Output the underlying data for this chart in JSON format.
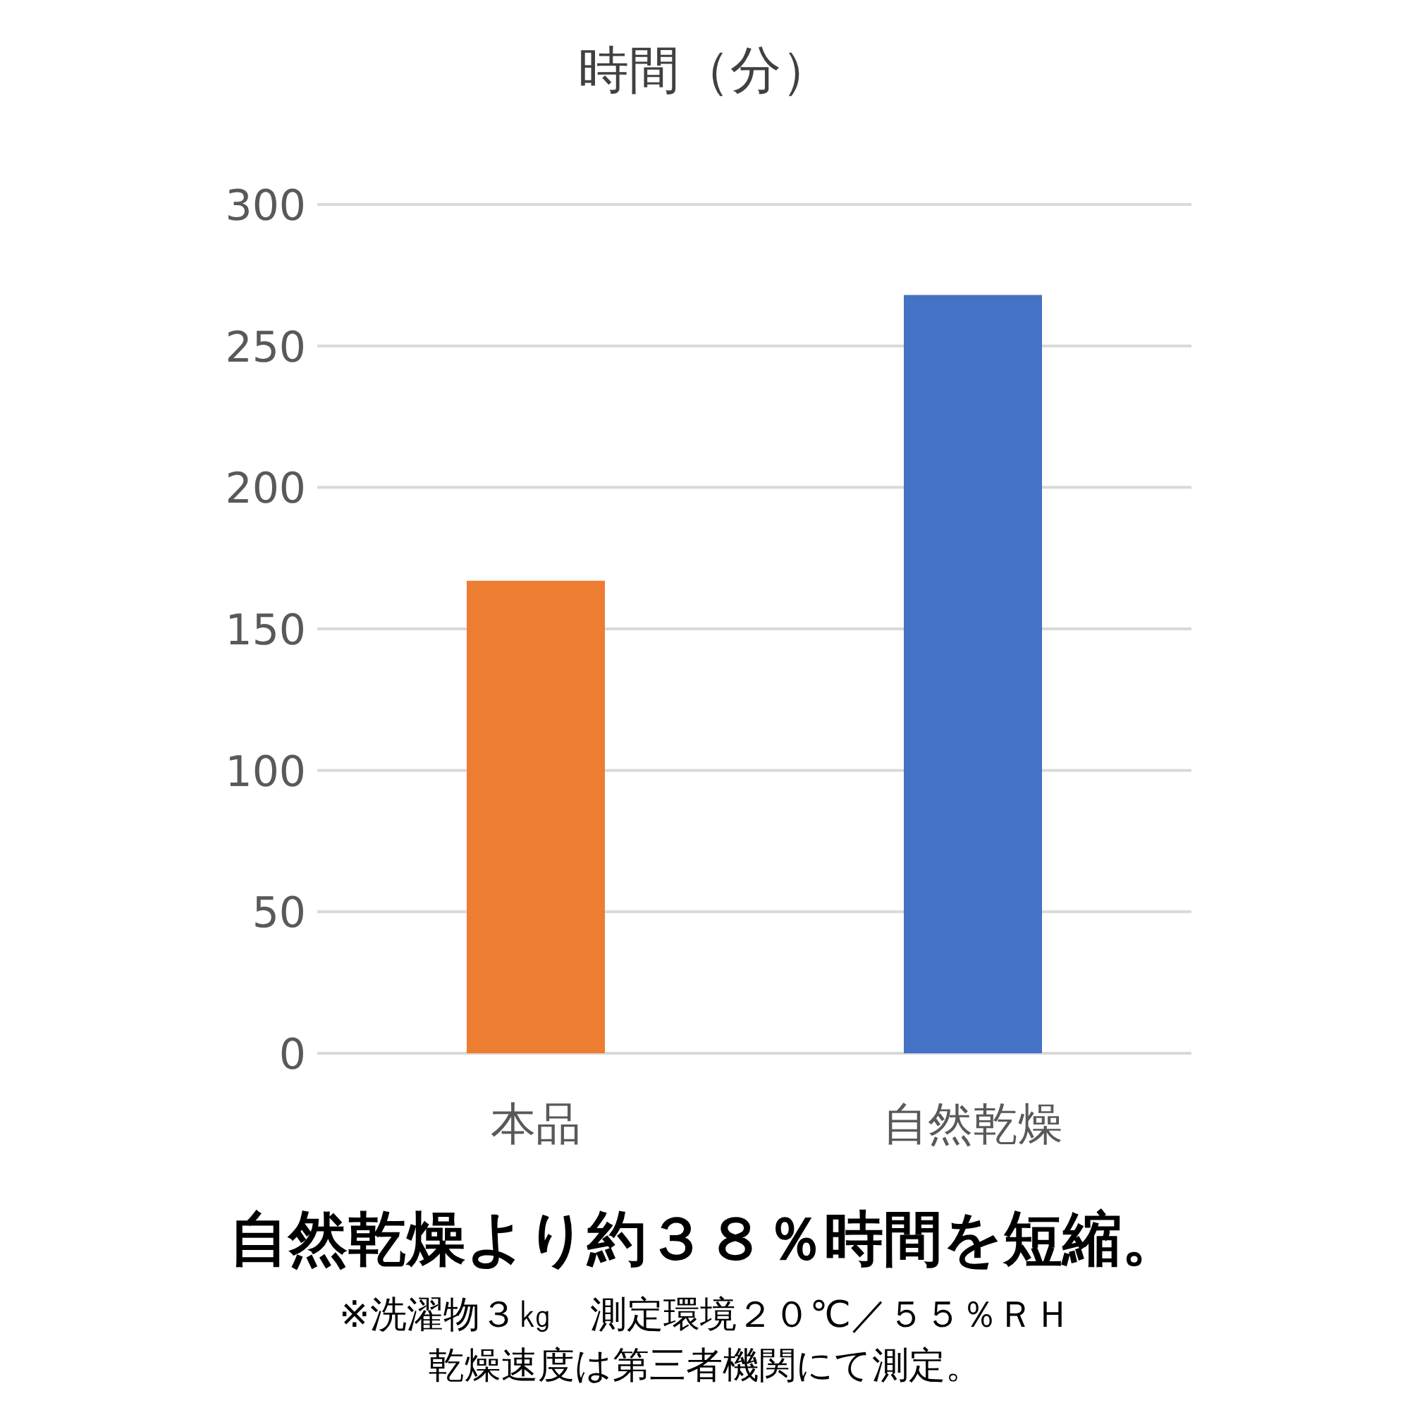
{
  "chart_data": {
    "type": "bar",
    "title": "時間（分）",
    "categories": [
      "本品",
      "自然乾燥"
    ],
    "values": [
      167,
      268
    ],
    "colors": [
      "#ed7d31",
      "#4472c4"
    ],
    "ylim": [
      0,
      300
    ],
    "yticks": [
      0,
      50,
      100,
      150,
      200,
      250,
      300
    ],
    "grid": "y",
    "annotations": [
      "自然乾燥より約３８％時間を短縮。",
      "※洗濯物３㎏　測定環境２０℃／５５％ＲＨ",
      "乾燥速度は第三者機関にて測定。"
    ]
  }
}
